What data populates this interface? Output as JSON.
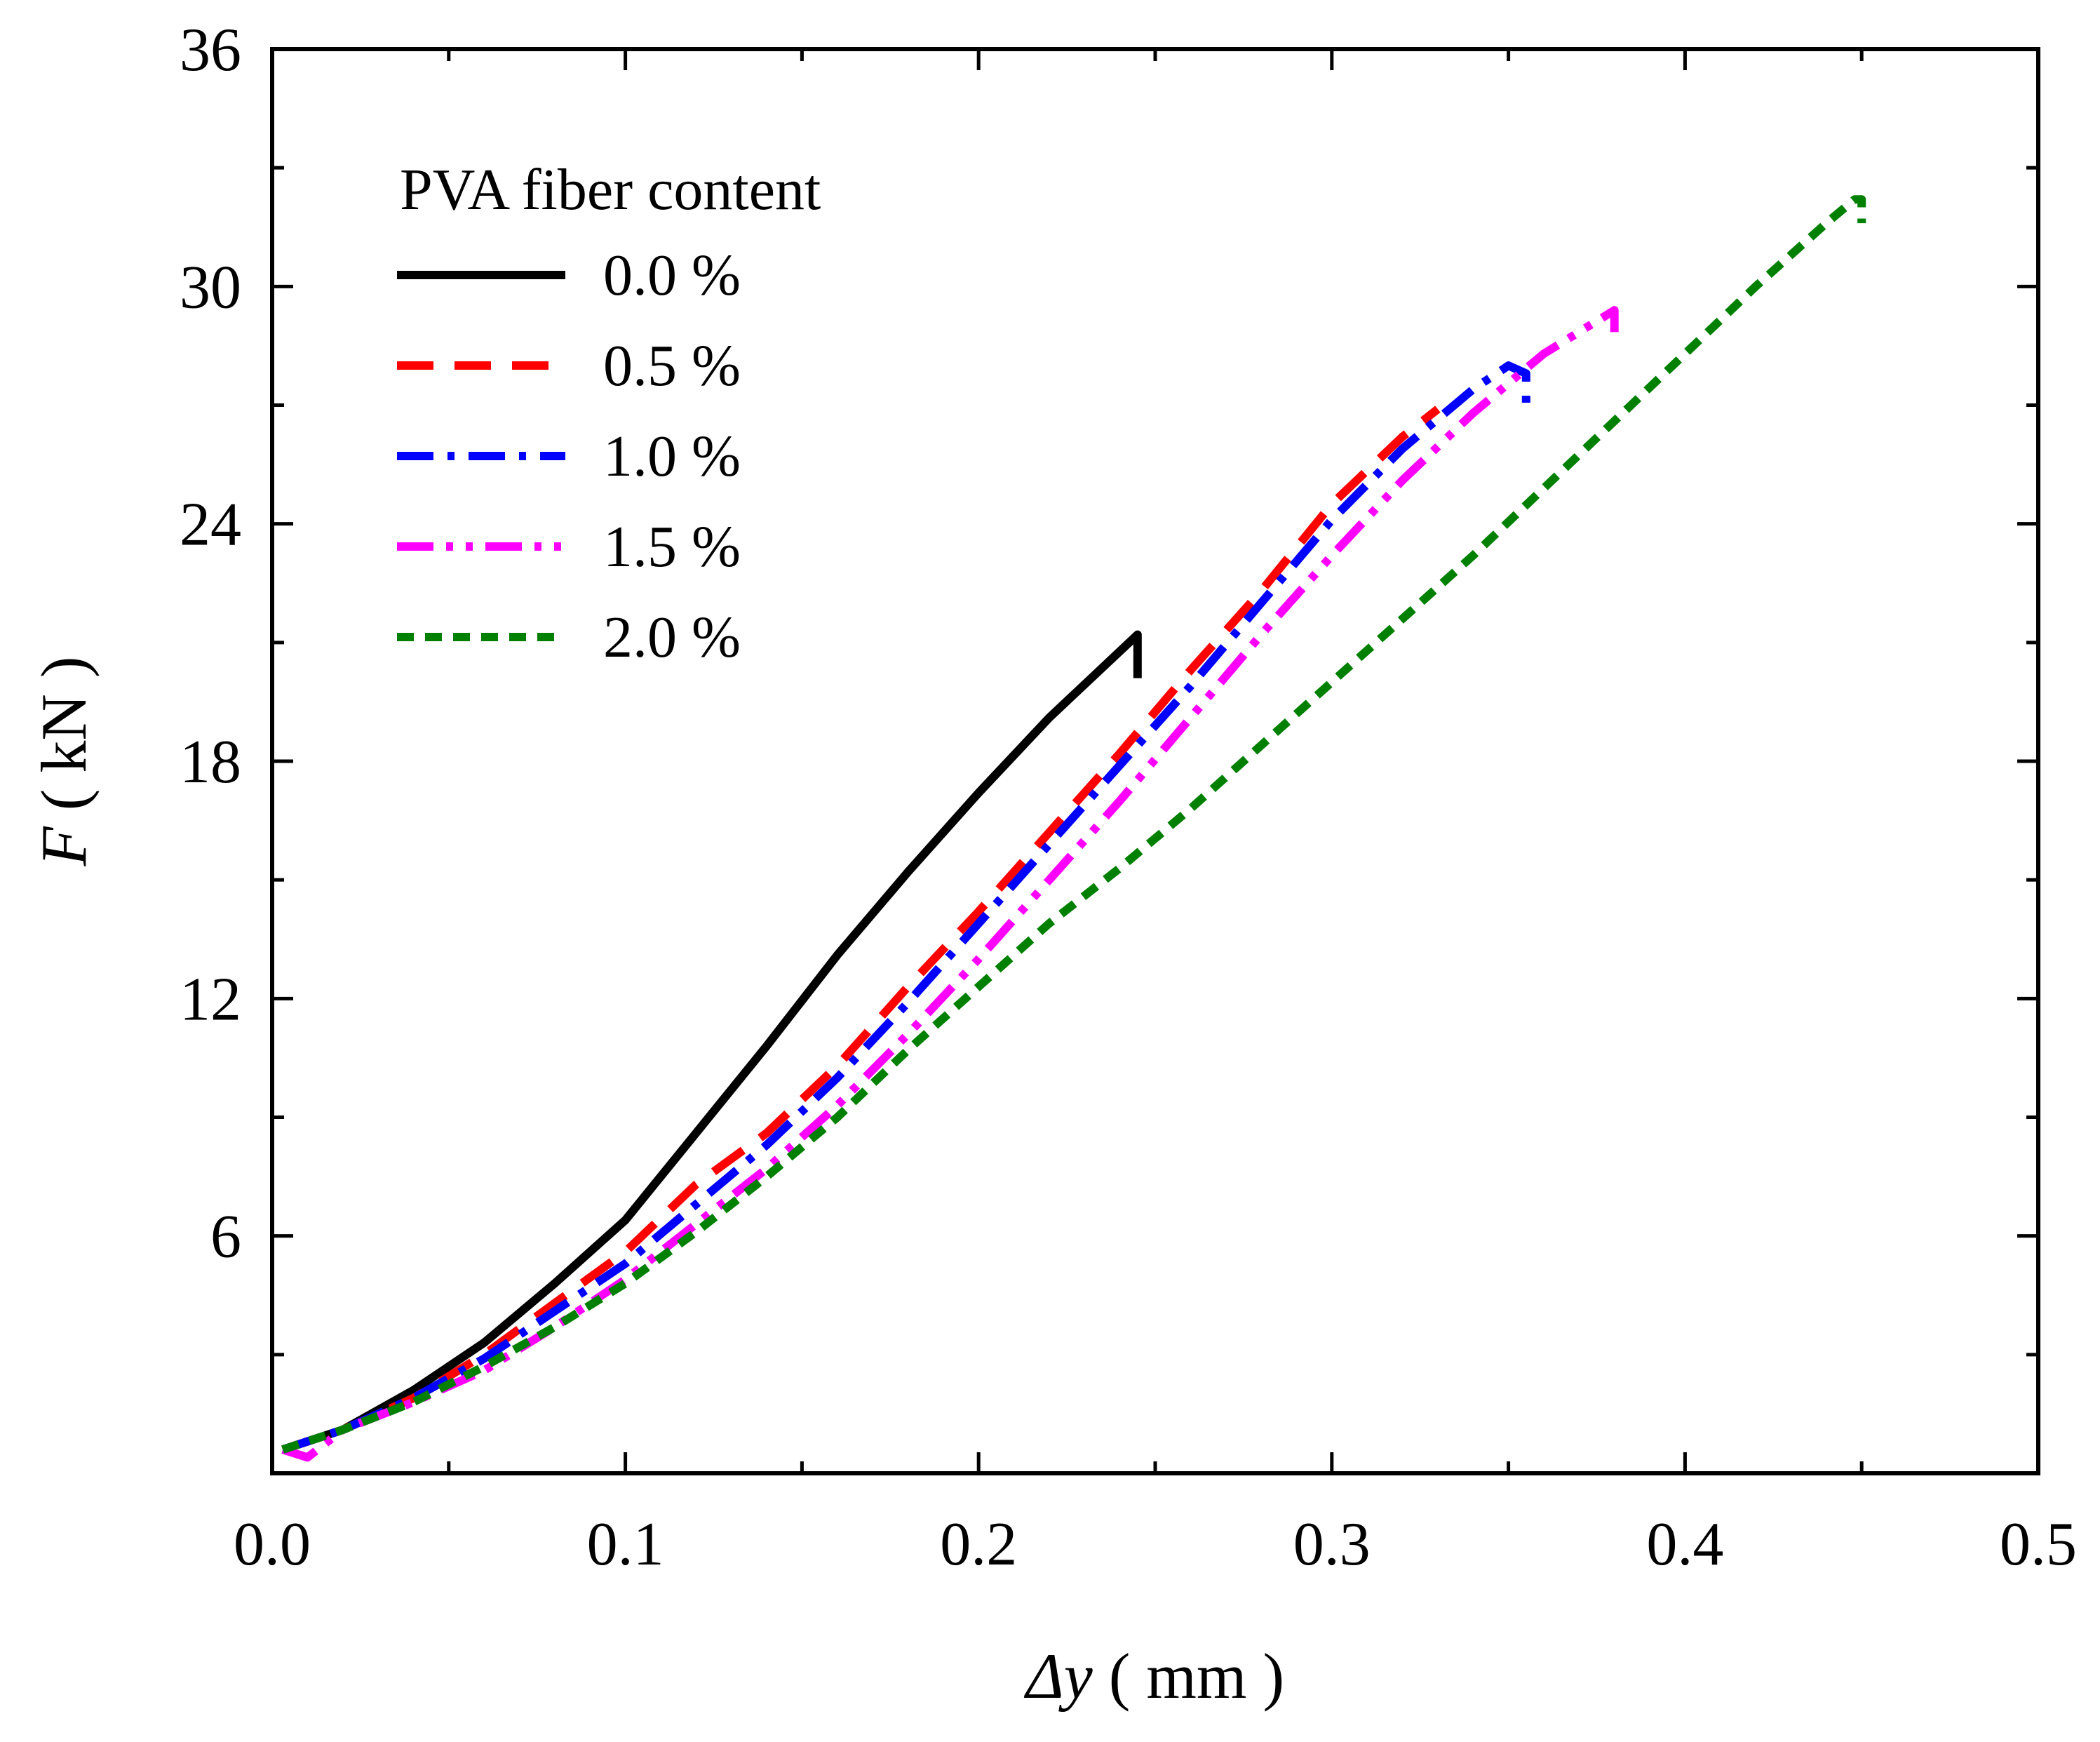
{
  "chart_data": {
    "type": "line",
    "xlabel_symbol": "Δy",
    "xlabel_unit": "( mm )",
    "ylabel_symbol": "F",
    "ylabel_unit": "( kN )",
    "xlim": [
      0.0,
      0.5
    ],
    "ylim": [
      0,
      36
    ],
    "x_ticks": [
      0.0,
      0.1,
      0.2,
      0.3,
      0.4,
      0.5
    ],
    "x_tick_labels": [
      "0.0",
      "0.1",
      "0.2",
      "0.3",
      "0.4",
      "0.5"
    ],
    "x_minor_ticks": [
      0.05,
      0.15,
      0.25,
      0.35,
      0.45
    ],
    "y_ticks": [
      6,
      12,
      18,
      24,
      30,
      36
    ],
    "y_tick_labels": [
      "6",
      "12",
      "18",
      "24",
      "30",
      "36"
    ],
    "y_minor_ticks": [
      3,
      9,
      15,
      21,
      27,
      33
    ],
    "grid": false,
    "legend": {
      "title": "PVA fiber content",
      "position": "top-left"
    },
    "series": [
      {
        "name": "0.0 %",
        "color": "#000000",
        "dash": "solid",
        "x": [
          0.003,
          0.02,
          0.04,
          0.06,
          0.08,
          0.1,
          0.12,
          0.14,
          0.16,
          0.18,
          0.2,
          0.22,
          0.245,
          0.245
        ],
        "y": [
          0.6,
          1.1,
          2.1,
          3.3,
          4.8,
          6.4,
          8.6,
          10.8,
          13.1,
          15.2,
          17.2,
          19.1,
          21.2,
          20.1
        ]
      },
      {
        "name": "0.5 %",
        "color": "#ff0000",
        "dash": "dash",
        "x": [
          0.003,
          0.02,
          0.04,
          0.06,
          0.08,
          0.1,
          0.12,
          0.14,
          0.16,
          0.18,
          0.2,
          0.22,
          0.24,
          0.26,
          0.28,
          0.3,
          0.32,
          0.33
        ],
        "y": [
          0.6,
          1.1,
          1.9,
          3.0,
          4.3,
          5.6,
          7.3,
          8.6,
          10.3,
          12.3,
          14.2,
          16.2,
          18.2,
          20.3,
          22.3,
          24.5,
          26.2,
          26.9
        ]
      },
      {
        "name": "1.0 %",
        "color": "#0000ff",
        "dash": "dashdot",
        "x": [
          0.003,
          0.02,
          0.04,
          0.06,
          0.08,
          0.1,
          0.12,
          0.14,
          0.16,
          0.18,
          0.2,
          0.22,
          0.24,
          0.26,
          0.28,
          0.3,
          0.32,
          0.34,
          0.35,
          0.355,
          0.355
        ],
        "y": [
          0.6,
          1.1,
          1.9,
          2.9,
          4.1,
          5.3,
          6.8,
          8.3,
          10.0,
          11.9,
          13.9,
          15.9,
          17.9,
          19.9,
          22.0,
          24.1,
          25.9,
          27.4,
          28.0,
          27.8,
          26.9
        ]
      },
      {
        "name": "1.5 %",
        "color": "#ff00ff",
        "dash": "dashdotdot",
        "x": [
          0.003,
          0.01,
          0.02,
          0.04,
          0.06,
          0.08,
          0.1,
          0.12,
          0.14,
          0.16,
          0.18,
          0.2,
          0.22,
          0.24,
          0.26,
          0.28,
          0.3,
          0.32,
          0.34,
          0.36,
          0.38,
          0.38
        ],
        "y": [
          0.6,
          0.4,
          1.1,
          1.8,
          2.6,
          3.7,
          4.9,
          6.3,
          7.7,
          9.3,
          11.1,
          13.0,
          15.0,
          17.0,
          19.1,
          21.2,
          23.2,
          25.1,
          26.8,
          28.3,
          29.4,
          28.8
        ]
      },
      {
        "name": "2.0 %",
        "color": "#008000",
        "dash": "shortdash",
        "x": [
          0.003,
          0.02,
          0.04,
          0.06,
          0.08,
          0.1,
          0.12,
          0.14,
          0.16,
          0.18,
          0.2,
          0.22,
          0.24,
          0.26,
          0.28,
          0.3,
          0.32,
          0.34,
          0.36,
          0.38,
          0.4,
          0.42,
          0.44,
          0.448,
          0.45,
          0.45
        ],
        "y": [
          0.6,
          1.1,
          1.8,
          2.7,
          3.7,
          4.8,
          6.1,
          7.5,
          9.0,
          10.7,
          12.3,
          13.9,
          15.3,
          16.8,
          18.4,
          20.0,
          21.6,
          23.2,
          24.9,
          26.6,
          28.3,
          30.0,
          31.6,
          32.2,
          32.2,
          31.6
        ]
      }
    ]
  }
}
